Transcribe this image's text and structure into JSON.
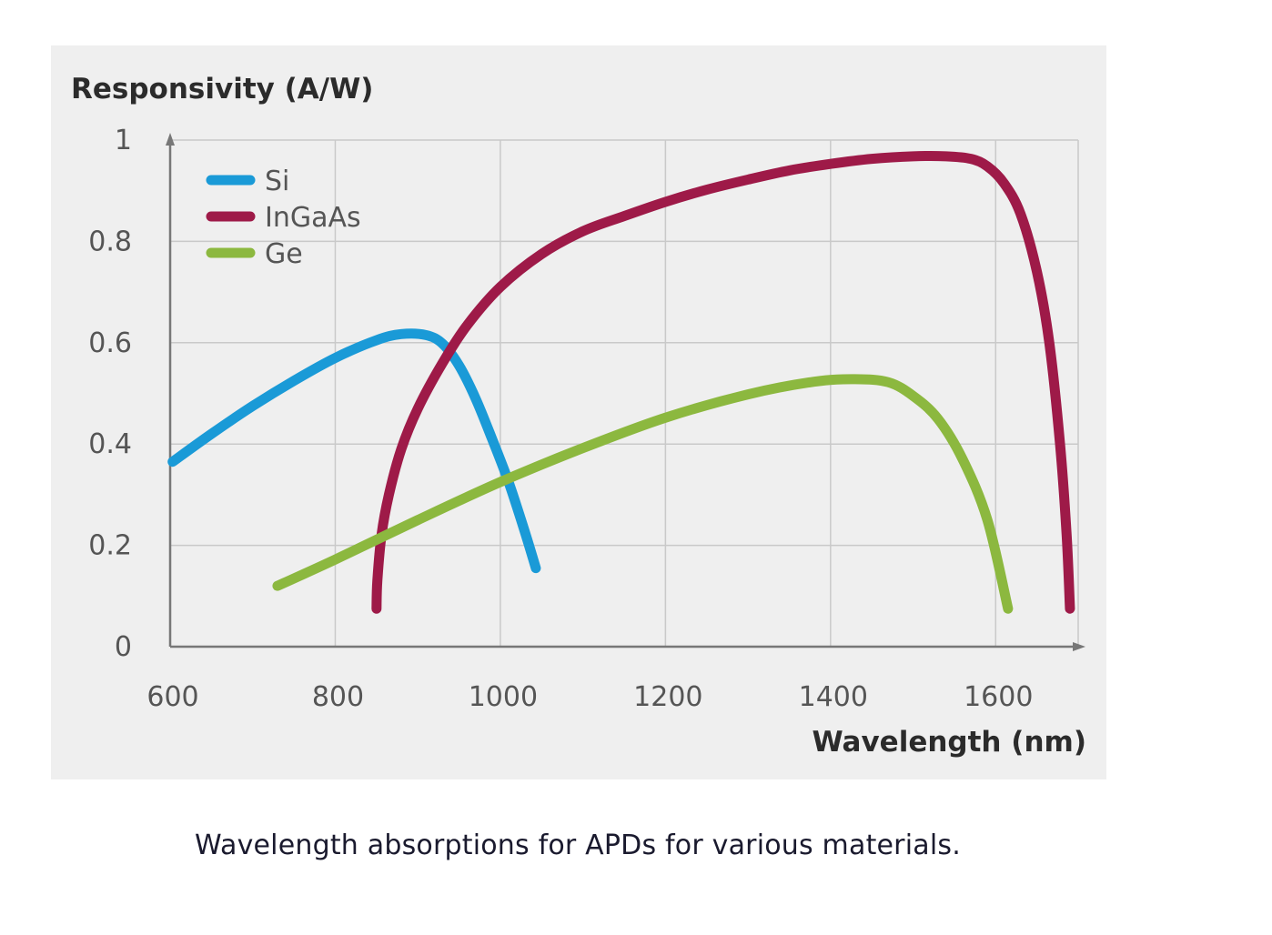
{
  "caption": "Wavelength absorptions for APDs for various materials.",
  "colors": {
    "panel_background": "#efefef",
    "grid": "#c9c9c9",
    "axis": "#777777",
    "si": "#1a9ad7",
    "ingaas": "#9e1a48",
    "ge": "#8cb83f"
  },
  "chart_data": {
    "type": "line",
    "title": "",
    "ylabel": "Responsivity (A/W)",
    "xlabel": "Wavelength (nm)",
    "xlim": [
      600,
      1700
    ],
    "ylim": [
      0,
      1
    ],
    "x_ticks": [
      600,
      800,
      1000,
      1200,
      1400,
      1600
    ],
    "x_tick_labels": [
      "600",
      "800",
      "1000",
      "1200",
      "1400",
      "1600"
    ],
    "y_ticks": [
      0,
      0.2,
      0.4,
      0.6,
      0.8,
      1
    ],
    "y_tick_labels": [
      "0",
      "0.2",
      "0.4",
      "0.6",
      "0.8",
      "1"
    ],
    "grid": true,
    "legend_position": "top-left",
    "series": [
      {
        "name": "Si",
        "color_key": "si",
        "points": [
          [
            603,
            0.365
          ],
          [
            650,
            0.42
          ],
          [
            700,
            0.475
          ],
          [
            750,
            0.525
          ],
          [
            800,
            0.57
          ],
          [
            850,
            0.605
          ],
          [
            880,
            0.617
          ],
          [
            910,
            0.615
          ],
          [
            930,
            0.598
          ],
          [
            950,
            0.555
          ],
          [
            970,
            0.49
          ],
          [
            990,
            0.41
          ],
          [
            1010,
            0.325
          ],
          [
            1030,
            0.225
          ],
          [
            1043,
            0.155
          ]
        ]
      },
      {
        "name": "InGaAs",
        "color_key": "ingaas",
        "points": [
          [
            850,
            0.075
          ],
          [
            851,
            0.13
          ],
          [
            856,
            0.22
          ],
          [
            865,
            0.3
          ],
          [
            880,
            0.39
          ],
          [
            900,
            0.47
          ],
          [
            930,
            0.56
          ],
          [
            960,
            0.635
          ],
          [
            1000,
            0.71
          ],
          [
            1050,
            0.775
          ],
          [
            1100,
            0.82
          ],
          [
            1150,
            0.85
          ],
          [
            1200,
            0.878
          ],
          [
            1250,
            0.902
          ],
          [
            1300,
            0.922
          ],
          [
            1350,
            0.94
          ],
          [
            1400,
            0.953
          ],
          [
            1450,
            0.963
          ],
          [
            1500,
            0.968
          ],
          [
            1540,
            0.968
          ],
          [
            1570,
            0.963
          ],
          [
            1590,
            0.948
          ],
          [
            1610,
            0.915
          ],
          [
            1630,
            0.855
          ],
          [
            1650,
            0.74
          ],
          [
            1665,
            0.6
          ],
          [
            1678,
            0.4
          ],
          [
            1686,
            0.22
          ],
          [
            1690,
            0.075
          ]
        ]
      },
      {
        "name": "Ge",
        "color_key": "ge",
        "points": [
          [
            730,
            0.12
          ],
          [
            800,
            0.172
          ],
          [
            900,
            0.25
          ],
          [
            1000,
            0.325
          ],
          [
            1100,
            0.392
          ],
          [
            1200,
            0.452
          ],
          [
            1300,
            0.498
          ],
          [
            1380,
            0.523
          ],
          [
            1430,
            0.528
          ],
          [
            1470,
            0.522
          ],
          [
            1500,
            0.495
          ],
          [
            1530,
            0.45
          ],
          [
            1560,
            0.37
          ],
          [
            1590,
            0.25
          ],
          [
            1615,
            0.075
          ]
        ]
      }
    ]
  }
}
